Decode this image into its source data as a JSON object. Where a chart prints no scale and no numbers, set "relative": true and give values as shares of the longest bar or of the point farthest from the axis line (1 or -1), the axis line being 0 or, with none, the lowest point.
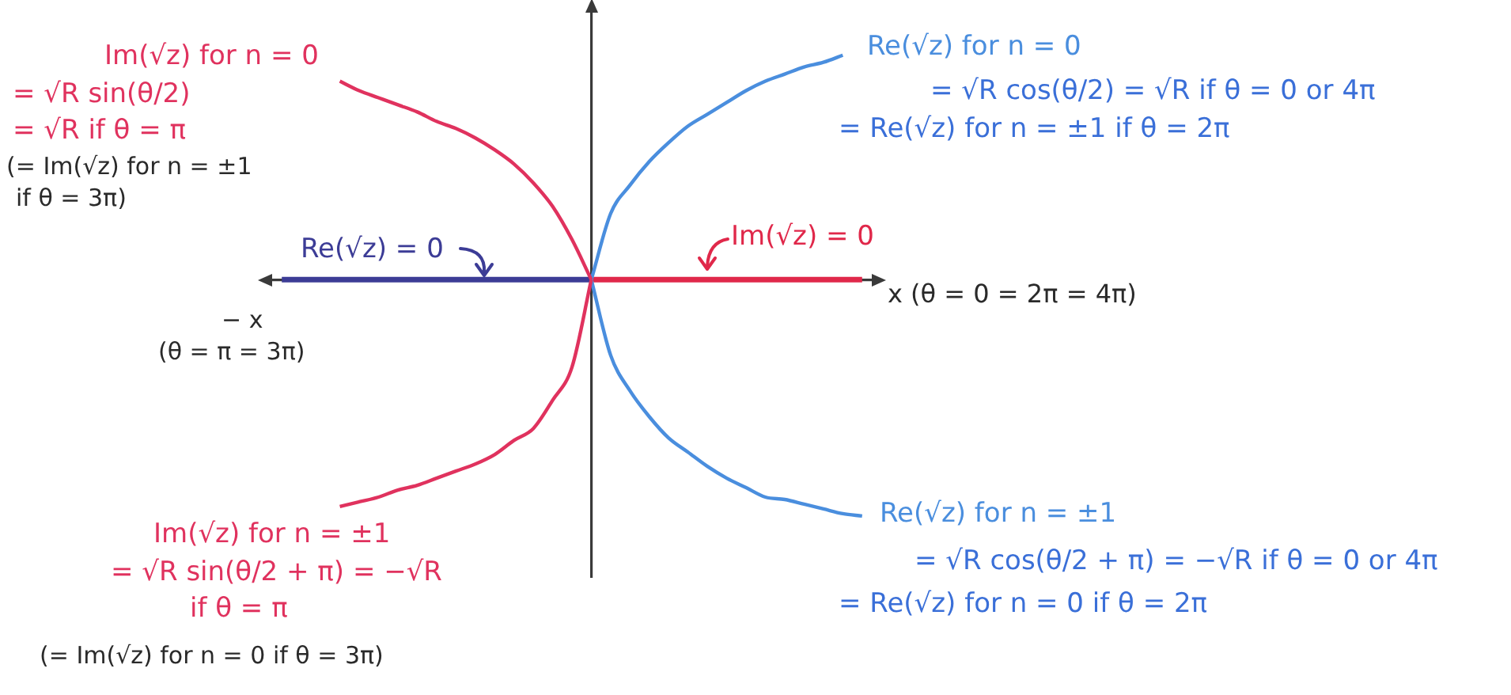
{
  "chart_data": {
    "type": "line",
    "relative": true,
    "marker": "none",
    "xlabel": "x (θ = 0 = 2π = 4π)",
    "categories": [
      null,
      null,
      null,
      null,
      null,
      null,
      null,
      null,
      null,
      null,
      null,
      null,
      null,
      null,
      null,
      null,
      null,
      null,
      null,
      null,
      null,
      null,
      null,
      null,
      null,
      null,
      null,
      null,
      null,
      null,
      null
    ],
    "series": [
      {
        "name": "Im(√z) for n = 0",
        "color": "#e0325e",
        "values": [
          null,
          null,
          null,
          0.84,
          0.8,
          0.77,
          0.74,
          0.71,
          0.67,
          0.64,
          0.6,
          0.55,
          0.49,
          0.41,
          0.31,
          0.17,
          0,
          null,
          null,
          null,
          null,
          null,
          null,
          null,
          null,
          null,
          null,
          null,
          null,
          null,
          null
        ]
      },
      {
        "name": "Im(√z) for n = ±1",
        "color": "#e0325e",
        "values": [
          null,
          null,
          null,
          -0.96,
          -0.94,
          -0.92,
          -0.89,
          -0.87,
          -0.84,
          -0.81,
          -0.78,
          -0.74,
          -0.68,
          -0.63,
          -0.51,
          -0.37,
          0,
          null,
          null,
          null,
          null,
          null,
          null,
          null,
          null,
          null,
          null,
          null,
          null,
          null,
          null
        ]
      },
      {
        "name": "Re(√z) for n = 0",
        "color": "#4a8ede",
        "values": [
          null,
          null,
          null,
          null,
          null,
          null,
          null,
          null,
          null,
          null,
          null,
          null,
          null,
          null,
          null,
          null,
          0,
          0.28,
          0.4,
          0.5,
          0.58,
          0.65,
          0.7,
          0.75,
          0.8,
          0.84,
          0.87,
          0.9,
          0.92,
          0.95,
          null
        ]
      },
      {
        "name": "Re(√z) for n = ±1",
        "color": "#4a8ede",
        "values": [
          null,
          null,
          null,
          null,
          null,
          null,
          null,
          null,
          null,
          null,
          null,
          null,
          null,
          null,
          null,
          null,
          0,
          -0.32,
          -0.47,
          -0.58,
          -0.67,
          -0.73,
          -0.79,
          -0.84,
          -0.88,
          -0.92,
          -0.93,
          -0.95,
          -0.97,
          -0.99,
          -1
        ]
      },
      {
        "name": "Re(√z) = 0",
        "color": "#3c3c96",
        "values": [
          0,
          0,
          0,
          0,
          0,
          0,
          0,
          0,
          0,
          0,
          0,
          0,
          0,
          0,
          0,
          0,
          0,
          null,
          null,
          null,
          null,
          null,
          null,
          null,
          null,
          null,
          null,
          null,
          null,
          null,
          null
        ]
      },
      {
        "name": "Im(√z) = 0",
        "color": "#e0284a",
        "values": [
          null,
          null,
          null,
          null,
          null,
          null,
          null,
          null,
          null,
          null,
          null,
          null,
          null,
          null,
          null,
          null,
          0,
          0,
          0,
          0,
          0,
          0,
          0,
          0,
          0,
          0,
          0,
          0,
          0,
          0,
          0
        ]
      }
    ],
    "annotations": [
      "= √R sin(θ/2)",
      "= √R if θ = π",
      "(= Im(√z) for n = ±1",
      "if θ = 3π)",
      "= √R cos(θ/2) = √R if θ = 0 or 4π",
      "= Re(√z) for n = ±1 if θ = 2π",
      "− x",
      "(θ = π = 3π)",
      "= √R sin(θ/2 + π) = −√R",
      "if θ = π",
      "(= Im(√z) for n = 0 if θ = 3π)",
      "= √R cos(θ/2 + π) = −√R if θ = 0 or 4π",
      "= Re(√z) for n = 0 if θ = 2π"
    ]
  }
}
